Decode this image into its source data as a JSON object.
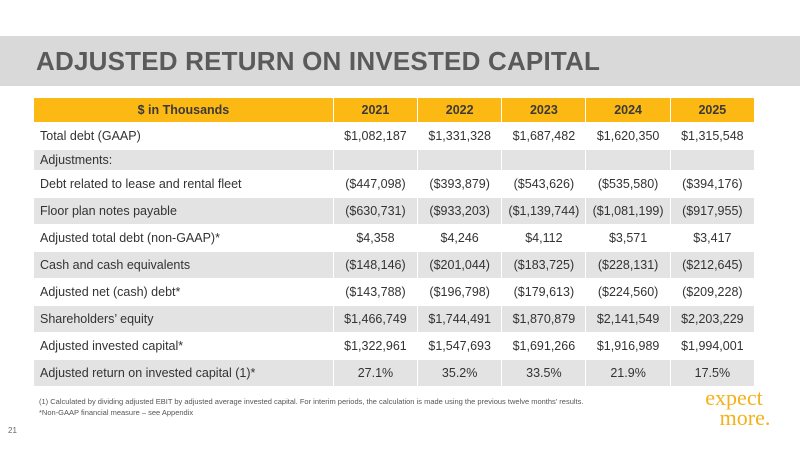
{
  "page": {
    "title": "ADJUSTED RETURN ON INVESTED CAPITAL",
    "page_number": "21"
  },
  "brand": {
    "logo_line1": "expect",
    "logo_line2": "more.",
    "accent_color": "#fdb913",
    "band_color": "#d9d9d9"
  },
  "table": {
    "headers": [
      "$ in Thousands",
      "2021",
      "2022",
      "2023",
      "2024",
      "2025"
    ],
    "rows": [
      {
        "label": "Total debt (GAAP)",
        "values": [
          "$1,082,187",
          "$1,331,328",
          "$1,687,482",
          "$1,620,350",
          "$1,315,548"
        ]
      },
      {
        "label": "Adjustments:",
        "values": [
          "",
          "",
          "",
          "",
          ""
        ]
      },
      {
        "label": "Debt related to lease and rental fleet",
        "values": [
          "($447,098)",
          "($393,879)",
          "($543,626)",
          "($535,580)",
          "($394,176)"
        ]
      },
      {
        "label": "Floor plan notes payable",
        "values": [
          "($630,731)",
          "($933,203)",
          "($1,139,744)",
          "($1,081,199)",
          "($917,955)"
        ]
      },
      {
        "label": "Adjusted total debt (non-GAAP)*",
        "values": [
          "$4,358",
          "$4,246",
          "$4,112",
          "$3,571",
          "$3,417"
        ]
      },
      {
        "label": "Cash and cash equivalents",
        "values": [
          "($148,146)",
          "($201,044)",
          "($183,725)",
          "($228,131)",
          "($212,645)"
        ]
      },
      {
        "label": "Adjusted net (cash) debt*",
        "values": [
          "($143,788)",
          "($196,798)",
          "($179,613)",
          "($224,560)",
          "($209,228)"
        ]
      },
      {
        "label": "Shareholders’ equity",
        "values": [
          "$1,466,749",
          "$1,744,491",
          "$1,870,879",
          "$2,141,549",
          "$2,203,229"
        ]
      },
      {
        "label": "Adjusted invested capital*",
        "values": [
          "$1,322,961",
          "$1,547,693",
          "$1,691,266",
          "$1,916,989",
          "$1,994,001"
        ]
      },
      {
        "label": "Adjusted return on invested capital (1)*",
        "values": [
          "27.1%",
          "35.2%",
          "33.5%",
          "21.9%",
          "17.5%"
        ]
      }
    ]
  },
  "footnotes": {
    "note1": "(1)   Calculated by dividing adjusted EBIT by adjusted average invested capital.  For interim periods, the calculation is made using the previous twelve months’ results.",
    "note2": "*Non-GAAP financial measure – see Appendix"
  }
}
